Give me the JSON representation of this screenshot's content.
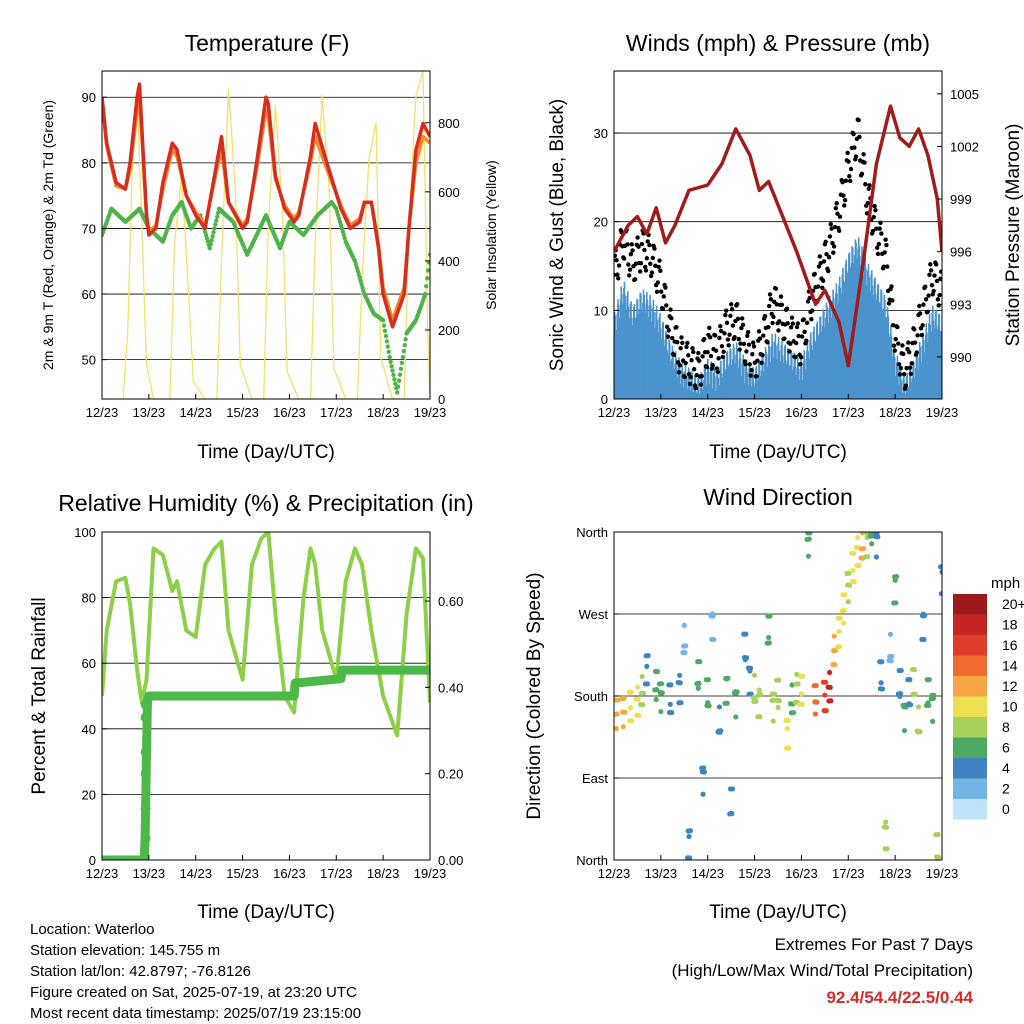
{
  "colors": {
    "temp_2m": "#d62d20",
    "temp_9m": "#f28a2c",
    "dewpoint": "#4fb34a",
    "solar": "#f5de6b",
    "wind_speed": "#4a93cc",
    "wind_gust": "#000000",
    "pressure": "#a01c1c",
    "humidity": "#8ecf4a",
    "precip": "#4cb848",
    "extremes": "#d42b2b"
  },
  "info": {
    "location": "Location: Waterloo",
    "elevation": "Station elevation: 145.755 m",
    "latlon": "Station lat/lon: 42.8797; -76.8126",
    "created": "Figure created on Sat, 2025-07-19, at 23:20 UTC",
    "latest": "Most recent data timestamp: 2025/07/19 23:15:00"
  },
  "extremes": {
    "title": "Extremes For Past 7 Days",
    "subtitle": "(High/Low/Max Wind/Total Precipitation)",
    "values": "92.4/54.4/22.5/0.44"
  },
  "chart_data": [
    {
      "id": "temperature",
      "type": "line",
      "title": "Temperature (F)",
      "xlabel": "Time (Day/UTC)",
      "ylabel": "2m & 9m T (Red, Orange) & 2m Td (Green)",
      "y2label": "Solar Insolation (Yellow)",
      "xticks": [
        "12/23",
        "13/23",
        "14/23",
        "15/23",
        "16/23",
        "17/23",
        "18/23",
        "19/23"
      ],
      "xlim": [
        0,
        7
      ],
      "ylim": [
        44,
        94
      ],
      "yticks": [
        50,
        60,
        70,
        80,
        90
      ],
      "y2lim": [
        0,
        950
      ],
      "y2ticks": [
        0,
        200,
        400,
        600,
        800
      ],
      "grid": true,
      "series": [
        {
          "key": "temp_2m",
          "axis": "left",
          "x": [
            0,
            0.1,
            0.3,
            0.5,
            0.6,
            0.75,
            0.8,
            0.95,
            1.0,
            1.15,
            1.3,
            1.5,
            1.6,
            1.8,
            2.0,
            2.2,
            2.45,
            2.55,
            2.7,
            3.0,
            3.1,
            3.3,
            3.5,
            3.55,
            3.7,
            3.9,
            4.1,
            4.2,
            4.45,
            4.55,
            4.8,
            5.1,
            5.3,
            5.5,
            5.6,
            5.75,
            5.9,
            6.0,
            6.2,
            6.45,
            6.55,
            6.7,
            6.85,
            7.0
          ],
          "y": [
            90,
            83,
            77,
            76,
            80,
            90,
            92,
            72,
            69,
            70,
            77,
            83,
            82,
            75,
            72,
            70,
            80,
            84,
            74,
            70,
            71,
            80,
            90,
            89,
            78,
            73,
            71,
            72,
            81,
            86,
            80,
            73,
            70,
            71,
            74,
            74,
            67,
            60,
            55,
            60,
            70,
            82,
            86,
            84
          ]
        },
        {
          "key": "temp_9m",
          "axis": "left",
          "x": [
            0,
            0.1,
            0.3,
            0.5,
            0.6,
            0.75,
            0.8,
            0.95,
            1.0,
            1.15,
            1.3,
            1.5,
            1.6,
            1.8,
            2.0,
            2.2,
            2.45,
            2.55,
            2.7,
            3.0,
            3.1,
            3.3,
            3.5,
            3.55,
            3.7,
            3.9,
            4.1,
            4.2,
            4.45,
            4.55,
            4.8,
            5.1,
            5.3,
            5.5,
            5.6,
            5.75,
            5.9,
            6.0,
            6.2,
            6.45,
            6.55,
            6.7,
            6.85,
            7.0
          ],
          "y": [
            90,
            82.5,
            76.5,
            76,
            79,
            88,
            90,
            72,
            69.5,
            70.5,
            76,
            82,
            81,
            75,
            72.5,
            70.5,
            79,
            82,
            74,
            70.5,
            71.5,
            79,
            88,
            87,
            77.5,
            73.5,
            71.5,
            72.5,
            80,
            84,
            79,
            73.5,
            70.5,
            71.5,
            74,
            74,
            67.5,
            61,
            56,
            61,
            70,
            80,
            84,
            83
          ]
        },
        {
          "key": "dewpoint",
          "axis": "left",
          "x": [
            0,
            0.2,
            0.5,
            0.8,
            1.0,
            1.3,
            1.5,
            1.7,
            1.9,
            2.1,
            2.3,
            2.5,
            2.8,
            3.1,
            3.3,
            3.5,
            3.8,
            4.0,
            4.3,
            4.6,
            4.9,
            5.0,
            5.2,
            5.4,
            5.6,
            5.8,
            6.0,
            6.15,
            6.3,
            6.5,
            6.7,
            6.9,
            7.0
          ],
          "y": [
            69,
            73,
            71,
            73,
            70,
            68,
            72,
            74,
            70,
            72,
            67,
            73,
            71,
            66,
            69,
            72,
            67,
            71,
            69,
            72,
            74,
            73,
            68,
            65,
            60,
            57,
            56,
            50,
            45,
            54,
            56,
            60,
            66
          ]
        },
        {
          "key": "solar",
          "axis": "right",
          "x": [
            0.45,
            0.55,
            0.65,
            0.75,
            0.85,
            0.95,
            1.1,
            1.45,
            1.55,
            1.7,
            1.85,
            1.95,
            2.2,
            2.45,
            2.55,
            2.7,
            2.85,
            2.95,
            3.2,
            3.45,
            3.55,
            3.7,
            3.85,
            3.95,
            4.2,
            4.45,
            4.55,
            4.7,
            4.85,
            4.95,
            5.2,
            5.45,
            5.55,
            5.7,
            5.85,
            5.95,
            6.2,
            6.45,
            6.55,
            6.7,
            6.85,
            6.95,
            7.0
          ],
          "y": [
            0,
            200,
            700,
            900,
            500,
            100,
            0,
            0,
            450,
            650,
            300,
            50,
            0,
            0,
            400,
            900,
            600,
            100,
            0,
            0,
            500,
            850,
            550,
            80,
            0,
            0,
            450,
            880,
            600,
            90,
            0,
            0,
            350,
            700,
            800,
            120,
            0,
            0,
            500,
            880,
            950,
            200,
            0
          ]
        }
      ]
    },
    {
      "id": "winds",
      "type": "line",
      "title": "Winds (mph) & Pressure (mb)",
      "xlabel": "Time (Day/UTC)",
      "ylabel": "Sonic Wind & Gust (Blue, Black)",
      "y2label": "Station Pressure (Maroon)",
      "xticks": [
        "12/23",
        "13/23",
        "14/23",
        "15/23",
        "16/23",
        "17/23",
        "18/23",
        "19/23"
      ],
      "xlim": [
        0,
        7
      ],
      "ylim": [
        0,
        37
      ],
      "yticks": [
        0,
        10,
        20,
        30
      ],
      "y2lim": [
        987.6,
        1006.3
      ],
      "y2ticks": [
        990,
        993,
        996,
        999,
        1002,
        1005
      ],
      "grid": true,
      "series": [
        {
          "key": "wind_speed",
          "axis": "left",
          "x": [
            0,
            0.2,
            0.4,
            0.6,
            0.8,
            1.0,
            1.2,
            1.4,
            1.6,
            1.8,
            2.0,
            2.2,
            2.4,
            2.6,
            2.8,
            3.0,
            3.2,
            3.4,
            3.6,
            3.8,
            4.0,
            4.2,
            4.4,
            4.6,
            4.8,
            5.0,
            5.2,
            5.4,
            5.6,
            5.8,
            6.0,
            6.2,
            6.4,
            6.6,
            6.8,
            7.0
          ],
          "y": [
            8,
            12,
            9,
            11,
            10,
            8,
            5,
            3,
            2,
            1,
            3,
            2,
            4,
            5,
            3,
            2,
            4,
            6,
            5,
            4,
            3,
            6,
            8,
            10,
            12,
            15,
            17,
            14,
            12,
            10,
            4,
            1,
            3,
            6,
            9,
            8
          ]
        },
        {
          "key": "wind_gust",
          "axis": "left",
          "x": [
            0,
            0.2,
            0.4,
            0.6,
            0.8,
            1.0,
            1.2,
            1.4,
            1.6,
            1.8,
            2.0,
            2.2,
            2.4,
            2.6,
            2.8,
            3.0,
            3.2,
            3.4,
            3.6,
            3.8,
            4.0,
            4.2,
            4.4,
            4.6,
            4.8,
            5.0,
            5.2,
            5.4,
            5.6,
            5.8,
            6.0,
            6.2,
            6.4,
            6.6,
            6.8,
            7.0
          ],
          "y": [
            14,
            18,
            15,
            17,
            16,
            13,
            8,
            5,
            4,
            3,
            6,
            5,
            8,
            9,
            6,
            4,
            7,
            11,
            9,
            7,
            6,
            11,
            14,
            17,
            21,
            26,
            30,
            23,
            19,
            16,
            7,
            3,
            6,
            10,
            14,
            12
          ]
        },
        {
          "key": "pressure",
          "axis": "right",
          "x": [
            0,
            0.3,
            0.5,
            0.7,
            0.9,
            1.1,
            1.3,
            1.6,
            2.0,
            2.3,
            2.6,
            2.9,
            3.1,
            3.3,
            3.6,
            3.9,
            4.1,
            4.3,
            4.5,
            4.8,
            5.0,
            5.3,
            5.6,
            5.9,
            6.1,
            6.3,
            6.5,
            6.7,
            6.9,
            7.0
          ],
          "y": [
            996,
            997.5,
            998,
            997,
            998.5,
            996.5,
            997.5,
            999.5,
            999.8,
            1001,
            1003,
            1001.5,
            999.5,
            1000,
            998,
            996,
            994.5,
            993,
            993.8,
            992,
            989.5,
            995,
            1001,
            1004.3,
            1002.5,
            1002,
            1003,
            1001.5,
            999,
            996
          ]
        }
      ]
    },
    {
      "id": "humidity",
      "type": "line",
      "title": "Relative Humidity (%) & Precipitation (in)",
      "xlabel": "Time (Day/UTC)",
      "ylabel": "Percent & Total Rainfall",
      "xticks": [
        "12/23",
        "13/23",
        "14/23",
        "15/23",
        "16/23",
        "17/23",
        "18/23",
        "19/23"
      ],
      "xlim": [
        0,
        7
      ],
      "ylim": [
        0,
        100
      ],
      "yticks": [
        0,
        20,
        40,
        60,
        80,
        100
      ],
      "y2lim": [
        0,
        0.76
      ],
      "y2ticks": [
        "0.00",
        "0.20",
        "0.40",
        "0.60"
      ],
      "grid": true,
      "series": [
        {
          "key": "humidity",
          "axis": "left",
          "x": [
            0,
            0.1,
            0.3,
            0.5,
            0.6,
            0.75,
            0.85,
            0.95,
            1.1,
            1.3,
            1.5,
            1.6,
            1.8,
            2.0,
            2.2,
            2.4,
            2.55,
            2.7,
            3.0,
            3.2,
            3.4,
            3.55,
            3.7,
            3.9,
            4.1,
            4.3,
            4.45,
            4.55,
            4.7,
            5.0,
            5.2,
            5.4,
            5.55,
            5.75,
            6.0,
            6.3,
            6.5,
            6.7,
            6.85,
            7.0
          ],
          "y": [
            50,
            70,
            85,
            86,
            78,
            58,
            48,
            55,
            95,
            93,
            82,
            85,
            70,
            68,
            90,
            95,
            97,
            70,
            55,
            90,
            98,
            100,
            75,
            50,
            45,
            80,
            95,
            90,
            70,
            55,
            85,
            95,
            90,
            70,
            50,
            38,
            75,
            95,
            92,
            48
          ]
        },
        {
          "key": "precip",
          "axis": "right",
          "x": [
            0,
            0.9,
            0.92,
            0.95,
            0.97,
            1.0,
            4.1,
            4.12,
            5.1,
            5.12,
            7.0
          ],
          "y": [
            0,
            0,
            0.05,
            0.25,
            0.37,
            0.38,
            0.38,
            0.41,
            0.42,
            0.44,
            0.44
          ]
        }
      ]
    },
    {
      "id": "wind_direction",
      "type": "scatter",
      "title": "Wind Direction",
      "xlabel": "Time (Day/UTC)",
      "ylabel": "Direction (Colored By Speed)",
      "xticks": [
        "12/23",
        "13/23",
        "14/23",
        "15/23",
        "16/23",
        "17/23",
        "18/23",
        "19/23"
      ],
      "xlim": [
        0,
        7
      ],
      "ylim": [
        0,
        360
      ],
      "ytick_values": [
        0,
        90,
        180,
        270,
        360
      ],
      "ytick_labels": [
        "North",
        "East",
        "South",
        "West",
        "North"
      ],
      "grid": true,
      "colorbar_title": "mph",
      "colorbar_labels": [
        "20+",
        "18",
        "16",
        "14",
        "12",
        "10",
        "8",
        "6",
        "4",
        "2",
        "0"
      ],
      "colorbar_colors": [
        "#9c1a1a",
        "#c72424",
        "#e03c2c",
        "#f06a32",
        "#f7a646",
        "#ece050",
        "#a8d05c",
        "#4fa864",
        "#3f84c0",
        "#74b4e2",
        "#bde4f7"
      ],
      "x": [
        0.05,
        0.2,
        0.35,
        0.5,
        0.6,
        0.7,
        0.9,
        1.0,
        1.2,
        1.4,
        1.5,
        1.6,
        1.8,
        1.9,
        2.0,
        2.1,
        2.25,
        2.4,
        2.5,
        2.6,
        2.8,
        2.9,
        3.0,
        3.1,
        3.3,
        3.4,
        3.5,
        3.7,
        3.8,
        3.9,
        4.0,
        4.15,
        4.3,
        4.5,
        4.6,
        4.7,
        4.8,
        4.9,
        5.0,
        5.1,
        5.2,
        5.3,
        5.4,
        5.5,
        5.6,
        5.7,
        5.8,
        5.9,
        6.0,
        6.1,
        6.2,
        6.3,
        6.4,
        6.5,
        6.6,
        6.7,
        6.8,
        6.9,
        7.0
      ],
      "y": [
        160,
        162,
        168,
        175,
        185,
        210,
        190,
        180,
        175,
        190,
        240,
        20,
        200,
        90,
        180,
        260,
        150,
        190,
        60,
        175,
        230,
        200,
        185,
        175,
        250,
        170,
        180,
        140,
        175,
        190,
        185,
        350,
        175,
        180,
        190,
        230,
        250,
        275,
        300,
        320,
        340,
        345,
        350,
        360,
        350,
        200,
        30,
        230,
        300,
        190,
        160,
        180,
        200,
        150,
        260,
        180,
        170,
        10,
        310
      ],
      "speed": [
        12,
        11,
        10,
        9,
        7,
        4,
        6,
        5,
        4,
        3,
        2,
        3,
        5,
        4,
        6,
        2,
        4,
        5,
        3,
        6,
        4,
        3,
        7,
        8,
        5,
        7,
        8,
        9,
        6,
        8,
        10,
        5,
        13,
        15,
        18,
        12,
        10,
        9,
        8,
        10,
        9,
        11,
        8,
        6,
        4,
        3,
        7,
        2,
        5,
        4,
        6,
        3,
        8,
        7,
        4,
        6,
        5,
        8,
        4
      ]
    }
  ]
}
